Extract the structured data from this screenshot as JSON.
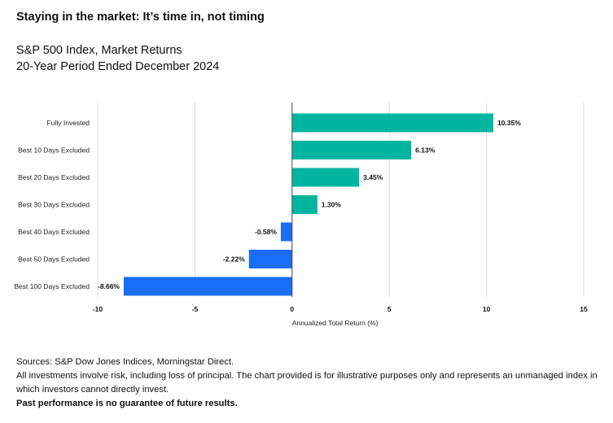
{
  "page": {
    "headline": "Staying in the market: It’s time in, not timing",
    "subtitle_line1": "S&P 500 Index, Market Returns",
    "subtitle_line2": "20-Year Period Ended December 2024"
  },
  "notes": {
    "sources": "Sources: S&P Dow Jones Indices, Morningstar Direct.",
    "disclaimer": "All investments involve risk, including loss of principal. The chart provided is for illustrative purposes only and represents an unmanaged index in which investors cannot directly invest.",
    "past_performance": "Past performance is no guarantee of future results."
  },
  "chart_data": {
    "type": "bar",
    "orientation": "horizontal",
    "categories": [
      "Fully Invested",
      "Best 10 Days Excluded",
      "Best 20 Days Excluded",
      "Best 30 Days Excluded",
      "Best 40 Days Excluded",
      "Best 50 Days Excluded",
      "Best 100 Days Excluded"
    ],
    "values": [
      10.35,
      6.13,
      3.45,
      1.3,
      -0.58,
      -2.22,
      -8.66
    ],
    "value_labels": [
      "10.35%",
      "6.13%",
      "3.45%",
      "1.30%",
      "-0.58%",
      "-2.22%",
      "-8.66%"
    ],
    "xlabel": "Annualized Total Return (%)",
    "ylabel": "",
    "xlim": [
      -10,
      15
    ],
    "xticks": [
      -10,
      -5,
      0,
      5,
      10,
      15
    ],
    "xtick_labels": [
      "-10",
      "-5",
      "0",
      "5",
      "10",
      "15"
    ],
    "grid": true,
    "colors": {
      "positive": "#00b5a0",
      "negative": "#1a6ef5",
      "grid": "#d9d9d9",
      "zero_line": "#444444"
    }
  }
}
